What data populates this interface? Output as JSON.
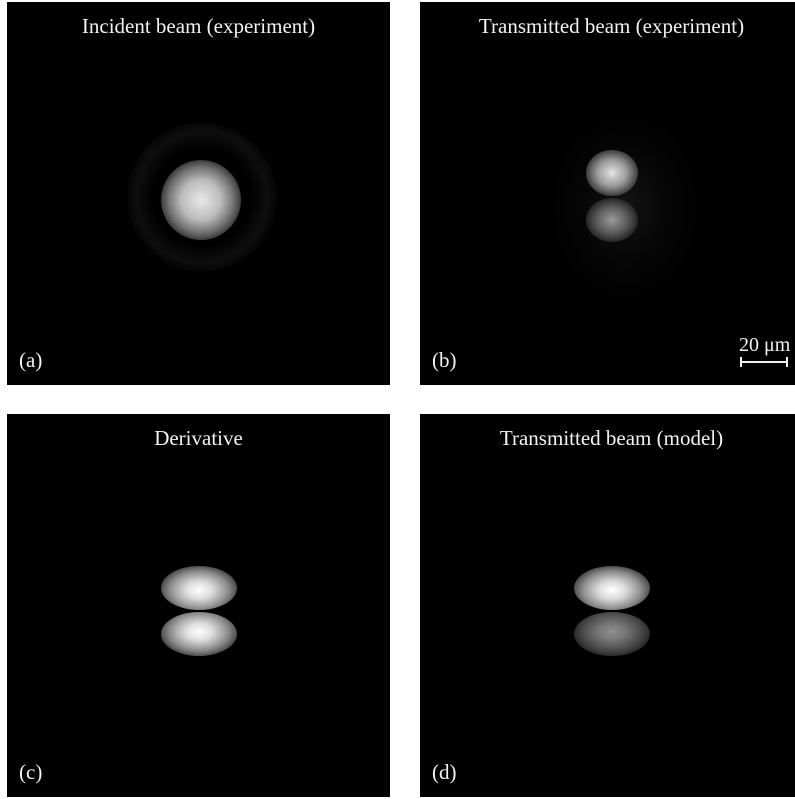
{
  "panels": [
    {
      "title": "Incident beam (experiment)",
      "label": "(a)"
    },
    {
      "title": "Transmitted beam (experiment)",
      "label": "(b)"
    },
    {
      "title": "Derivative",
      "label": "(c)"
    },
    {
      "title": "Transmitted beam (model)",
      "label": "(d)"
    }
  ],
  "scale_bar": {
    "text": "20 μm"
  }
}
